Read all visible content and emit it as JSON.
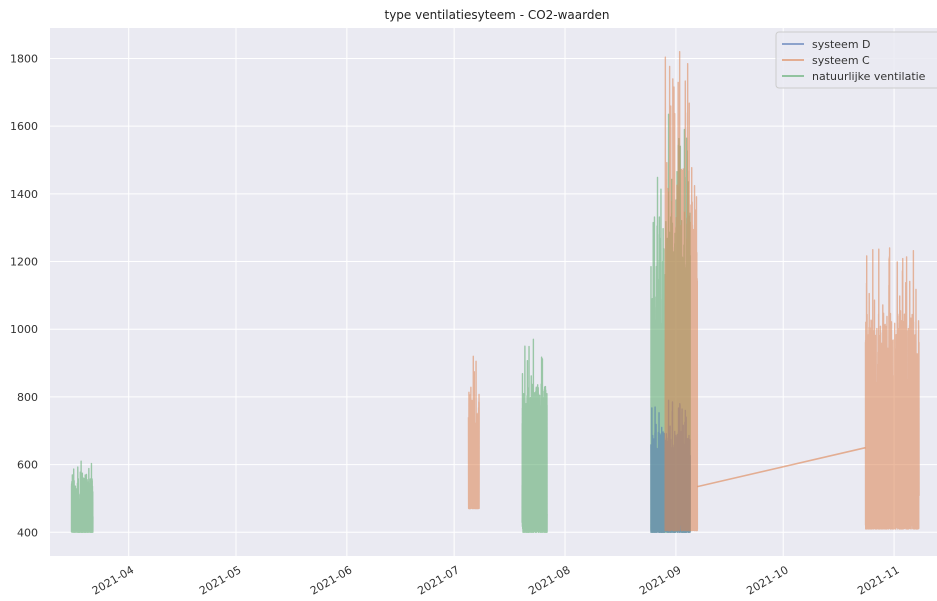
{
  "chart_data": {
    "type": "line",
    "title": "type ventilatiesyteem - CO2-waarden",
    "xlabel": "",
    "ylabel": "",
    "x_ticks": [
      "2021-04",
      "2021-05",
      "2021-06",
      "2021-07",
      "2021-08",
      "2021-09",
      "2021-10",
      "2021-11"
    ],
    "y_ticks": [
      400,
      600,
      800,
      1000,
      1200,
      1400,
      1600,
      1800
    ],
    "xlim": [
      "2021-03-10",
      "2021-11-13"
    ],
    "ylim": [
      330,
      1890
    ],
    "grid": true,
    "legend_position": "top-right",
    "series": [
      {
        "name": "systeem D",
        "color": "#4c72b0",
        "segments": [
          {
            "x_range": [
              "2021-08-25",
              "2021-09-05"
            ],
            "y_range": [
              400,
              790
            ]
          }
        ]
      },
      {
        "name": "systeem C",
        "color": "#dd8452",
        "segments": [
          {
            "x_range": [
              "2021-07-05",
              "2021-07-08"
            ],
            "y_range": [
              470,
              920
            ]
          },
          {
            "x_range": [
              "2021-08-29",
              "2021-09-07"
            ],
            "y_range": [
              405,
              1820
            ]
          },
          {
            "x_range": [
              "2021-10-24",
              "2021-11-08"
            ],
            "y_range": [
              410,
              1240
            ]
          }
        ],
        "bridge": {
          "from": [
            "2021-09-07",
            535
          ],
          "to": [
            "2021-10-24",
            650
          ]
        }
      },
      {
        "name": "natuurlijke ventilatie",
        "color": "#55a868",
        "segments": [
          {
            "x_range": [
              "2021-03-16",
              "2021-03-22"
            ],
            "y_range": [
              400,
              610
            ]
          },
          {
            "x_range": [
              "2021-07-20",
              "2021-07-27"
            ],
            "y_range": [
              400,
              970
            ]
          },
          {
            "x_range": [
              "2021-08-25",
              "2021-09-05"
            ],
            "y_range": [
              400,
              1635
            ]
          }
        ]
      }
    ]
  }
}
